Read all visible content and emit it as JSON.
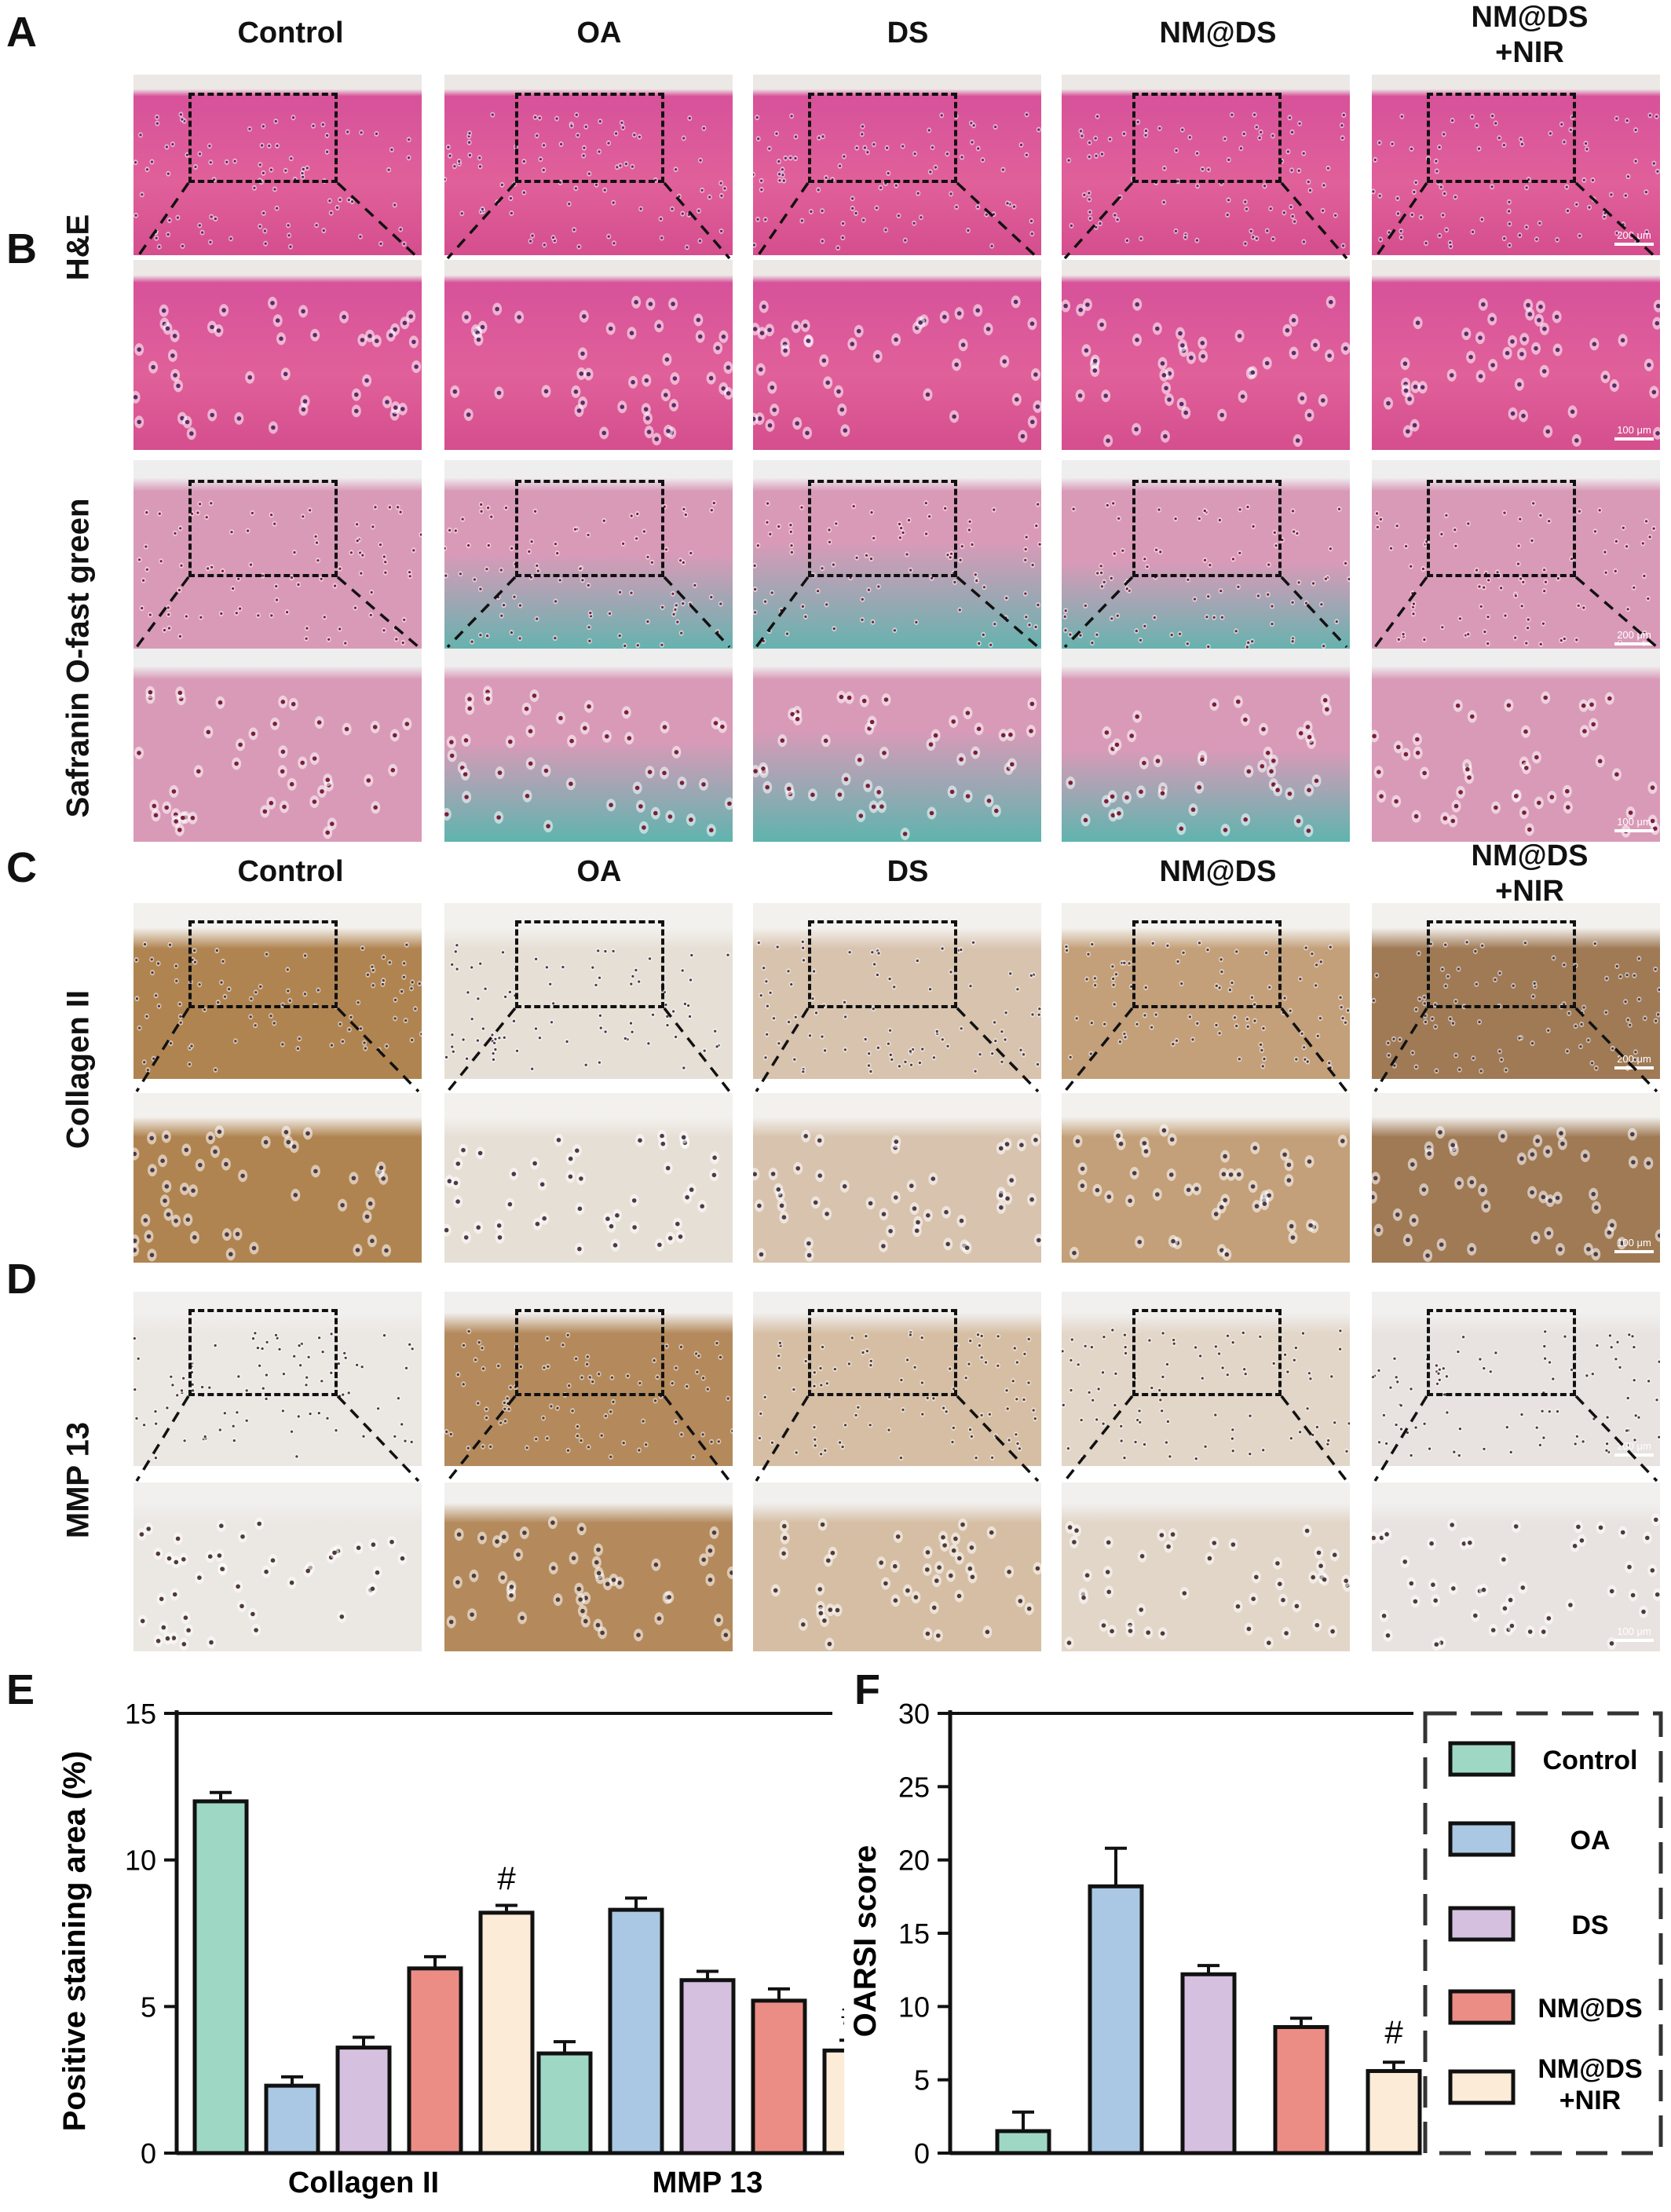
{
  "panel_letters": {
    "a": "A",
    "b": "B",
    "c": "C",
    "d": "D",
    "e": "E",
    "f": "F"
  },
  "groups": [
    "Control",
    "OA",
    "DS",
    "NM@DS",
    "NM@DS\n+NIR"
  ],
  "group_headers_top": [
    "Control",
    "OA",
    "DS",
    "NM@DS",
    "NM@DS",
    "+NIR"
  ],
  "row_labels": {
    "he": "H&E",
    "safranin": "Safranin O-fast green",
    "collagen": "Collagen II",
    "mmp": "MMP 13"
  },
  "scale_bars": {
    "low": "200 μm",
    "high": "100 μm"
  },
  "stain_colors": {
    "he_bg": "#e0609a",
    "he_top": "#d7529a",
    "saf_pink": "#d99ab8",
    "saf_teal": "#5fb4ae",
    "col_brown": "#b08450",
    "col_light": "#e6dfd6",
    "mmp_brown": "#b48a5c",
    "mmp_light": "#ebe7e3"
  },
  "legend": {
    "items": [
      "Control",
      "OA",
      "DS",
      "NM@DS",
      "NM@DS",
      "+NIR"
    ],
    "colors": [
      "#9ed8c5",
      "#aac8e4",
      "#d5c0df",
      "#ec8d85",
      "#fbebd7"
    ]
  },
  "chart_data": [
    {
      "type": "bar",
      "panel": "E",
      "ylabel": "Positive staining area (%)",
      "ylim": [
        0,
        15
      ],
      "yticks": [
        0,
        5,
        10,
        15
      ],
      "categories": [
        "Collagen II",
        "MMP 13"
      ],
      "series": [
        {
          "name": "Control",
          "values": [
            12.0,
            3.4
          ],
          "errors": [
            0.3,
            0.4
          ]
        },
        {
          "name": "OA",
          "values": [
            2.3,
            8.3
          ],
          "errors": [
            0.3,
            0.4
          ]
        },
        {
          "name": "DS",
          "values": [
            3.6,
            5.9
          ],
          "errors": [
            0.35,
            0.3
          ]
        },
        {
          "name": "NM@DS",
          "values": [
            6.3,
            5.2
          ],
          "errors": [
            0.4,
            0.4
          ]
        },
        {
          "name": "NM@DS +NIR",
          "values": [
            8.2,
            3.5
          ],
          "errors": [
            0.25,
            0.35
          ]
        }
      ],
      "annotations": [
        {
          "category": "Collagen II",
          "series": "NM@DS +NIR",
          "text": "#"
        },
        {
          "category": "MMP 13",
          "series": "NM@DS +NIR",
          "text": "#"
        }
      ]
    },
    {
      "type": "bar",
      "panel": "F",
      "ylabel": "OARSI score",
      "ylim": [
        0,
        30
      ],
      "yticks": [
        0,
        5,
        10,
        15,
        20,
        25,
        30
      ],
      "categories": [
        "Control",
        "OA",
        "DS",
        "NM@DS",
        "NM@DS +NIR"
      ],
      "values": [
        1.5,
        18.2,
        12.2,
        8.6,
        5.6
      ],
      "errors": [
        1.3,
        2.6,
        0.6,
        0.6,
        0.6
      ],
      "annotations": [
        {
          "category": "NM@DS +NIR",
          "text": "#"
        }
      ]
    }
  ]
}
